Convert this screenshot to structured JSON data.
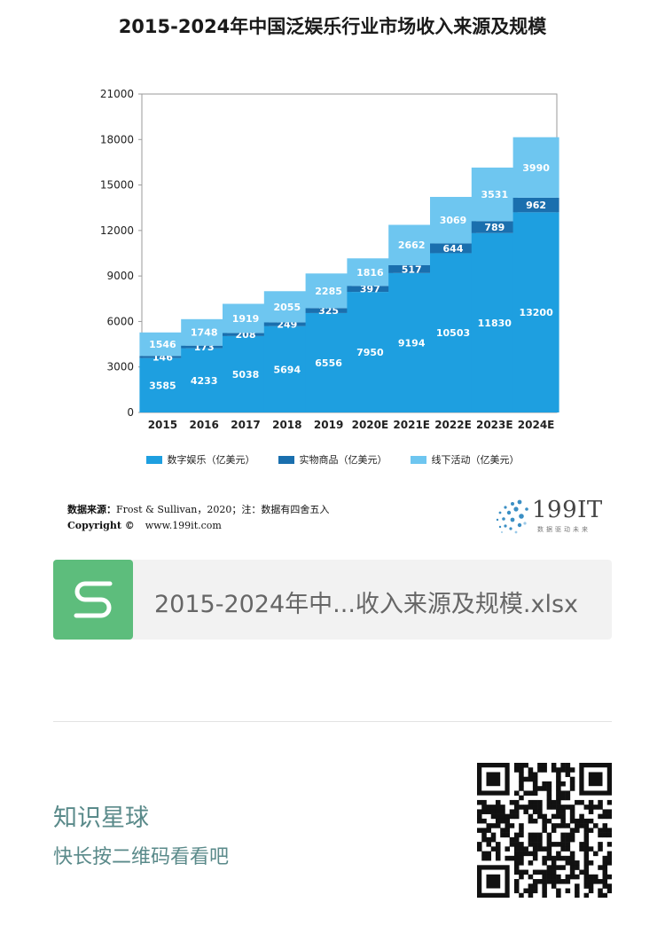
{
  "title": "2015-2024年中国泛娱乐行业市场收入来源及规模",
  "chart_data": {
    "type": "bar",
    "stacked": true,
    "categories": [
      "2015",
      "2016",
      "2017",
      "2018",
      "2019",
      "2020E",
      "2021E",
      "2022E",
      "2023E",
      "2024E"
    ],
    "series": [
      {
        "name": "数字娱乐（亿美元）",
        "color": "#1e9fe0",
        "values": [
          3585,
          4233,
          5038,
          5694,
          6556,
          7950,
          9194,
          10503,
          11830,
          13200
        ]
      },
      {
        "name": "实物商品（亿美元）",
        "color": "#1a6fae",
        "values": [
          146,
          173,
          208,
          249,
          325,
          397,
          517,
          644,
          789,
          962
        ]
      },
      {
        "name": "线下活动（亿美元）",
        "color": "#6ec6f0",
        "values": [
          1546,
          1748,
          1919,
          2055,
          2285,
          1816,
          2662,
          3069,
          3531,
          3990
        ]
      }
    ],
    "yticks": [
      "0",
      "3000",
      "6000",
      "9000",
      "12000",
      "15000",
      "18000",
      "21000"
    ],
    "ylim": [
      0,
      21000
    ],
    "grid": false,
    "legend_position": "bottom"
  },
  "source_label": "数据来源：",
  "source_text": "Frost & Sullivan，2020；注：数据有四舍五入",
  "copyright_label": "Copyright ©",
  "copyright_url": "www.199it.com",
  "logo_text": "199IT",
  "logo_sub": "数据驱动未来",
  "file_name": "2015-2024年中...收入来源及规模.xlsx",
  "kb_title": "知识星球",
  "kb_subtitle": "快长按二维码看看吧",
  "colors": {
    "file_icon": "#5dbd7c",
    "kb_text": "#5a8a8a"
  }
}
